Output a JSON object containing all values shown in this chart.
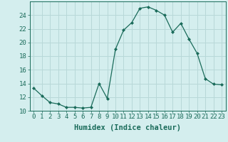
{
  "x": [
    0,
    1,
    2,
    3,
    4,
    5,
    6,
    7,
    8,
    9,
    10,
    11,
    12,
    13,
    14,
    15,
    16,
    17,
    18,
    19,
    20,
    21,
    22,
    23
  ],
  "y": [
    13.3,
    12.2,
    11.2,
    11.0,
    10.5,
    10.5,
    10.4,
    10.5,
    14.0,
    11.8,
    19.0,
    21.8,
    22.9,
    25.0,
    25.2,
    24.7,
    24.0,
    21.5,
    22.8,
    20.5,
    18.4,
    14.7,
    13.9,
    13.8
  ],
  "line_color": "#1a6b5a",
  "marker": "D",
  "marker_size": 2.0,
  "bg_color": "#d4eeee",
  "grid_color": "#b8d8d8",
  "xlabel": "Humidex (Indice chaleur)",
  "ylim": [
    10,
    26
  ],
  "yticks": [
    10,
    12,
    14,
    16,
    18,
    20,
    22,
    24
  ],
  "xticks": [
    0,
    1,
    2,
    3,
    4,
    5,
    6,
    7,
    8,
    9,
    10,
    11,
    12,
    13,
    14,
    15,
    16,
    17,
    18,
    19,
    20,
    21,
    22,
    23
  ],
  "tick_fontsize": 6.5,
  "xlabel_fontsize": 7.5
}
